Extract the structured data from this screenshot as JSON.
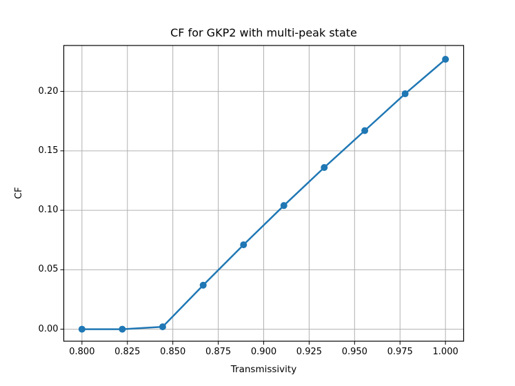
{
  "figure": {
    "background": "#ffffff",
    "text_color": "#000000"
  },
  "chart_data": {
    "type": "line",
    "title": "CF for GKP2 with multi-peak state",
    "xlabel": "Transmissivity",
    "ylabel": "CF",
    "xlim": [
      0.79,
      1.01
    ],
    "ylim": [
      -0.0101,
      0.2386
    ],
    "xticks": [
      0.8,
      0.825,
      0.85,
      0.875,
      0.9,
      0.925,
      0.95,
      0.975,
      1.0
    ],
    "xtick_labels": [
      "0.800",
      "0.825",
      "0.850",
      "0.875",
      "0.900",
      "0.925",
      "0.950",
      "0.975",
      "1.000"
    ],
    "yticks": [
      0.0,
      0.05,
      0.1,
      0.15,
      0.2
    ],
    "ytick_labels": [
      "0.00",
      "0.05",
      "0.10",
      "0.15",
      "0.20"
    ],
    "grid": true,
    "grid_color": "#b0b0b0",
    "spine_color": "#000000",
    "legend": false,
    "series": [
      {
        "name": "CF",
        "color": "#1f77b4",
        "marker": "circle",
        "marker_size": 10,
        "line_width": 2.5,
        "x": [
          0.8,
          0.8222,
          0.8444,
          0.8667,
          0.8889,
          0.9111,
          0.9333,
          0.9556,
          0.9778,
          1.0
        ],
        "y": [
          0.0,
          0.0,
          0.002,
          0.037,
          0.071,
          0.104,
          0.136,
          0.167,
          0.198,
          0.227
        ]
      }
    ]
  }
}
